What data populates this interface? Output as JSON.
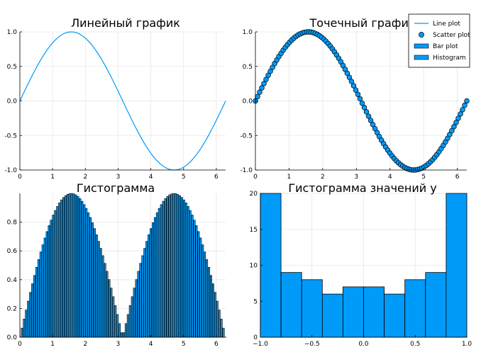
{
  "colors": {
    "series": "#009AF9",
    "grid": "#E6E6E6",
    "axis": "#000000",
    "outline": "#000000"
  },
  "chart_data": [
    {
      "type": "line",
      "title": "Линейный график",
      "function": "y = sin(x)",
      "x_range": [
        0,
        6.2832
      ],
      "samples": 100,
      "xlim": [
        0,
        6.2832
      ],
      "ylim": [
        -1,
        1
      ],
      "xticks": [
        0,
        1,
        2,
        3,
        4,
        5,
        6
      ],
      "yticks": [
        -1.0,
        -0.5,
        0.0,
        0.5,
        1.0
      ],
      "xticklabels": [
        "0",
        "1",
        "2",
        "3",
        "4",
        "5",
        "6"
      ],
      "yticklabels": [
        "-1.0",
        "-0.5",
        "0.0",
        "0.5",
        "1.0"
      ],
      "grid": true
    },
    {
      "type": "scatter",
      "title": "Точечный график",
      "function": "y = sin(x)",
      "x_range": [
        0,
        6.2832
      ],
      "samples": 100,
      "xlim": [
        0,
        6.2832
      ],
      "ylim": [
        -1,
        1
      ],
      "xticks": [
        0,
        1,
        2,
        3,
        4,
        5,
        6
      ],
      "yticks": [
        -1.0,
        -0.5,
        0.0,
        0.5,
        1.0
      ],
      "xticklabels": [
        "0",
        "1",
        "2",
        "3",
        "4",
        "5",
        "6"
      ],
      "yticklabels": [
        "-1.0",
        "-0.5",
        "0.0",
        "0.5",
        "1.0"
      ],
      "grid": true,
      "legend": {
        "placement": "top-right",
        "entries": [
          {
            "label": "Line plot",
            "marker": "line"
          },
          {
            "label": "Scatter plot",
            "marker": "circle"
          },
          {
            "label": "Bar plot",
            "marker": "bar"
          },
          {
            "label": "Histogram",
            "marker": "bar"
          }
        ]
      }
    },
    {
      "type": "bar",
      "title": "Гистограмма",
      "function": "y = |sin(x)|",
      "x_range": [
        0,
        6.2832
      ],
      "samples": 100,
      "xlim": [
        0,
        6.2832
      ],
      "ylim": [
        0,
        1
      ],
      "xticks": [
        0,
        1,
        2,
        3,
        4,
        5,
        6
      ],
      "yticks": [
        0.0,
        0.2,
        0.4,
        0.6,
        0.8
      ],
      "xticklabels": [
        "0",
        "1",
        "2",
        "3",
        "4",
        "5",
        "6"
      ],
      "yticklabels": [
        "0.0",
        "0.2",
        "0.4",
        "0.6",
        "0.8"
      ],
      "grid": true
    },
    {
      "type": "bar",
      "subtype": "histogram",
      "title": "Гистограмма значений y",
      "bin_edges": [
        -1.0,
        -0.8,
        -0.6,
        -0.4,
        -0.2,
        0.0,
        0.2,
        0.4,
        0.6,
        0.8,
        1.0
      ],
      "values": [
        20,
        9,
        8,
        6,
        7,
        7,
        6,
        8,
        9,
        20
      ],
      "xlim": [
        -1,
        1
      ],
      "ylim": [
        0,
        20
      ],
      "xticks": [
        -1.0,
        -0.5,
        0.0,
        0.5,
        1.0
      ],
      "yticks": [
        0,
        5,
        10,
        15,
        20
      ],
      "xticklabels": [
        "−1.0",
        "−0.5",
        "0.0",
        "0.5",
        "1.0"
      ],
      "yticklabels": [
        "0",
        "5",
        "10",
        "15",
        "20"
      ],
      "grid": true
    }
  ]
}
